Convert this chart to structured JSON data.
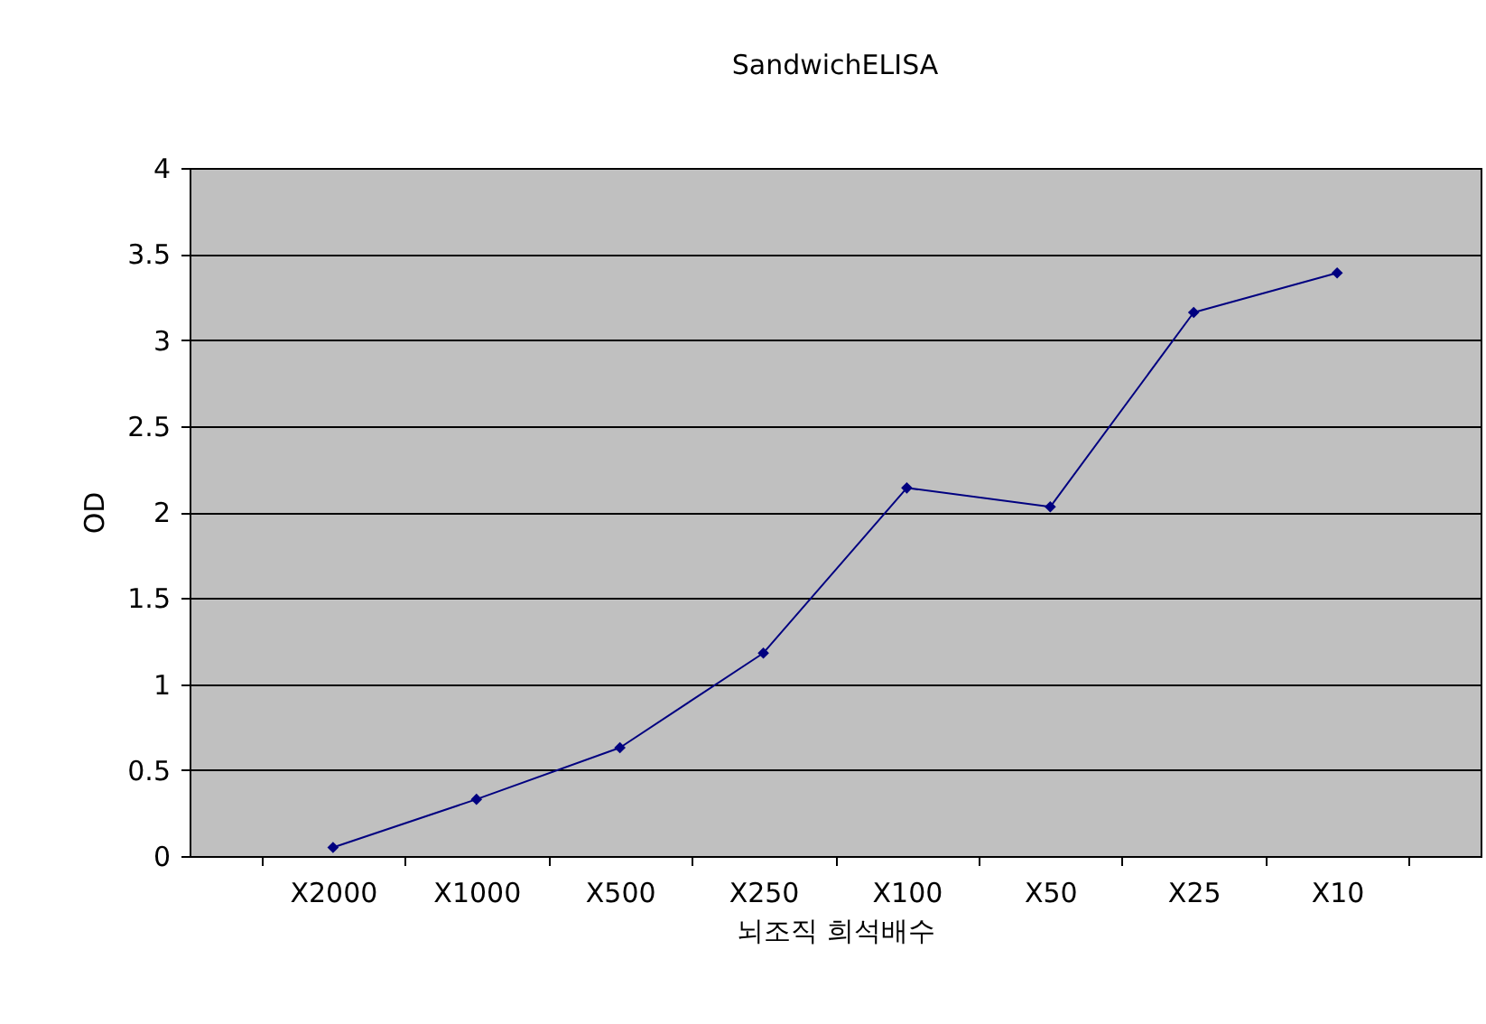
{
  "chart_data": {
    "type": "line",
    "title": "SandwichELISA",
    "xlabel": "뇌조직 희석배수",
    "ylabel": "OD",
    "categories": [
      "X2000",
      "X1000",
      "X500",
      "X250",
      "X100",
      "X50",
      "X25",
      "X10"
    ],
    "series": [
      {
        "color": "#000080",
        "values": [
          0.05,
          0.33,
          0.63,
          1.18,
          2.14,
          2.03,
          3.16,
          3.39
        ]
      }
    ],
    "ylim": [
      0,
      4
    ],
    "yticks": [
      0,
      0.5,
      1,
      1.5,
      2,
      2.5,
      3,
      3.5,
      4
    ],
    "grid": "y",
    "marker": "diamond",
    "line_style": "solid",
    "legend": false
  }
}
